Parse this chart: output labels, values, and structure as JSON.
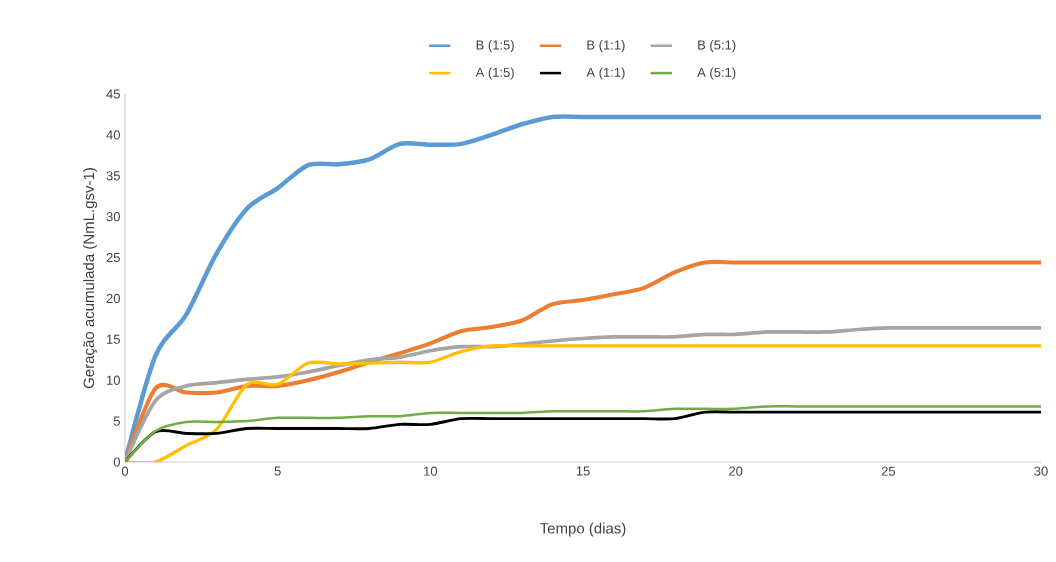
{
  "chart_data": {
    "type": "line",
    "xlabel": "Tempo (dias)",
    "ylabel": "Geração acumulada (NmL.gsv-1)",
    "x": [
      0,
      1,
      2,
      3,
      4,
      5,
      6,
      7,
      8,
      9,
      10,
      11,
      12,
      13,
      14,
      15,
      16,
      17,
      18,
      19,
      20,
      21,
      22,
      23,
      24,
      25,
      26,
      27,
      28,
      29,
      30
    ],
    "series": [
      {
        "name": "B (1:5)",
        "color": "#5b9bd5",
        "values": [
          0,
          13,
          18,
          25.5,
          31,
          33.5,
          36.3,
          36.4,
          37,
          38.9,
          38.8,
          38.9,
          40,
          41.3,
          42.2,
          42.2,
          42.2,
          42.2,
          42.2,
          42.2,
          42.2,
          42.2,
          42.2,
          42.2,
          42.2,
          42.2,
          42.2,
          42.2,
          42.2,
          42.2,
          42.2
        ]
      },
      {
        "name": "B (1:1)",
        "color": "#ed7d31",
        "values": [
          0,
          9,
          8.5,
          8.5,
          9.3,
          9.3,
          10,
          11,
          12.2,
          13.3,
          14.5,
          16,
          16.5,
          17.3,
          19.3,
          19.8,
          20.5,
          21.3,
          23.2,
          24.4,
          24.4,
          24.4,
          24.4,
          24.4,
          24.4,
          24.4,
          24.4,
          24.4,
          24.4,
          24.4,
          24.4
        ]
      },
      {
        "name": "B (5:1)",
        "color": "#a5a5a5",
        "values": [
          0,
          7.5,
          9.3,
          9.7,
          10.1,
          10.4,
          11,
          11.8,
          12.5,
          12.8,
          13.6,
          14.1,
          14.1,
          14.4,
          14.8,
          15.1,
          15.3,
          15.3,
          15.3,
          15.6,
          15.6,
          15.9,
          15.9,
          15.9,
          16.2,
          16.4,
          16.4,
          16.4,
          16.4,
          16.4,
          16.4
        ]
      },
      {
        "name": "A (1:5)",
        "color": "#ffc000",
        "values": [
          0,
          0,
          2,
          4,
          9.5,
          9.5,
          12.1,
          12,
          12.1,
          12.2,
          12.2,
          13.5,
          14.2,
          14.2,
          14.2,
          14.2,
          14.2,
          14.2,
          14.2,
          14.2,
          14.2,
          14.2,
          14.2,
          14.2,
          14.2,
          14.2,
          14.2,
          14.2,
          14.2,
          14.2,
          14.2
        ]
      },
      {
        "name": "A (1:1)",
        "color": "#000000",
        "values": [
          0,
          3.7,
          3.5,
          3.5,
          4.1,
          4.1,
          4.1,
          4.1,
          4.1,
          4.6,
          4.6,
          5.3,
          5.3,
          5.3,
          5.3,
          5.3,
          5.3,
          5.3,
          5.3,
          6.1,
          6.1,
          6.1,
          6.1,
          6.1,
          6.1,
          6.1,
          6.1,
          6.1,
          6.1,
          6.1,
          6.1
        ]
      },
      {
        "name": "A (5:1)",
        "color": "#70ad47",
        "values": [
          0,
          3.8,
          4.9,
          4.9,
          5.0,
          5.4,
          5.4,
          5.4,
          5.6,
          5.6,
          6,
          6,
          6,
          6,
          6.2,
          6.2,
          6.2,
          6.2,
          6.5,
          6.5,
          6.5,
          6.8,
          6.8,
          6.8,
          6.8,
          6.8,
          6.8,
          6.8,
          6.8,
          6.8,
          6.8
        ]
      }
    ],
    "xlim": [
      0,
      30
    ],
    "ylim": [
      0,
      45
    ],
    "xticks": [
      0,
      5,
      10,
      15,
      20,
      25,
      30
    ],
    "yticks": [
      0,
      5,
      10,
      15,
      20,
      25,
      30,
      35,
      40,
      45
    ],
    "grid": false,
    "legend": "top",
    "marker": "none",
    "line_style": "solid"
  }
}
